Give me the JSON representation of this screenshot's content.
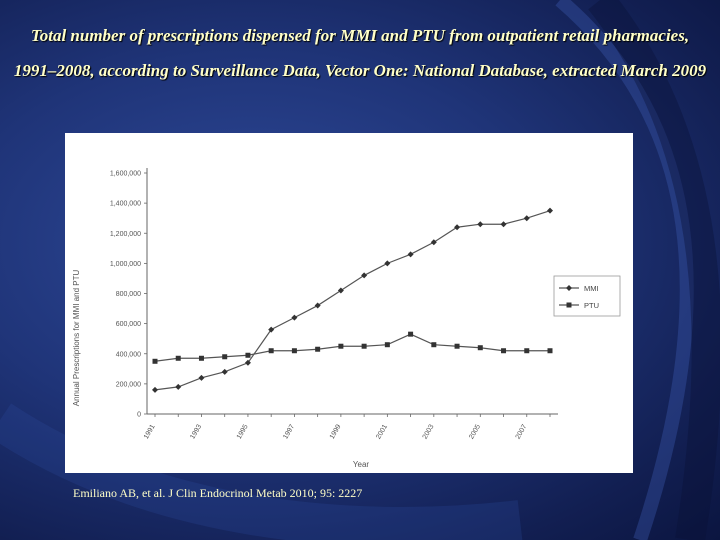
{
  "slide": {
    "title": "Total number of prescriptions dispensed for MMI and PTU from outpatient retail pharmacies, 1991–2008, according to Surveillance Data, Vector One: National Database, extracted March 2009",
    "citation": "Emiliano AB, et al. J Clin Endocrinol Metab 2010; 95: 2227"
  },
  "colors": {
    "title_text": "#ffffc8",
    "background": "#1f3478",
    "series_line": "#555555"
  },
  "chart_data": {
    "type": "line",
    "title": "",
    "xlabel": "Year",
    "ylabel": "Annual Prescriptions for MMI and PTU",
    "x": [
      1991,
      1992,
      1993,
      1994,
      1995,
      1996,
      1997,
      1998,
      1999,
      2000,
      2001,
      2002,
      2003,
      2004,
      2005,
      2006,
      2007,
      2008
    ],
    "x_tick_labels": [
      "1991",
      "1993",
      "1995",
      "1997",
      "1999",
      "2001",
      "2003",
      "2005",
      "2007"
    ],
    "y_tick_labels": [
      "0",
      "200,000",
      "400,000",
      "600,000",
      "800,000",
      "1,000,000",
      "1,200,000",
      "1,400,000",
      "1,600,000"
    ],
    "y_ticks": [
      0,
      200000,
      400000,
      600000,
      800000,
      1000000,
      1200000,
      1400000,
      1600000
    ],
    "ylim": [
      0,
      1600000
    ],
    "grid": false,
    "legend_position": "right",
    "series": [
      {
        "name": "MMI",
        "marker": "diamond",
        "values": [
          160000,
          180000,
          240000,
          280000,
          340000,
          560000,
          640000,
          720000,
          820000,
          920000,
          1000000,
          1060000,
          1140000,
          1240000,
          1260000,
          1260000,
          1300000,
          1350000
        ]
      },
      {
        "name": "PTU",
        "marker": "square",
        "values": [
          350000,
          370000,
          370000,
          380000,
          390000,
          420000,
          420000,
          430000,
          450000,
          450000,
          460000,
          530000,
          460000,
          450000,
          440000,
          420000,
          420000,
          420000
        ]
      }
    ]
  }
}
